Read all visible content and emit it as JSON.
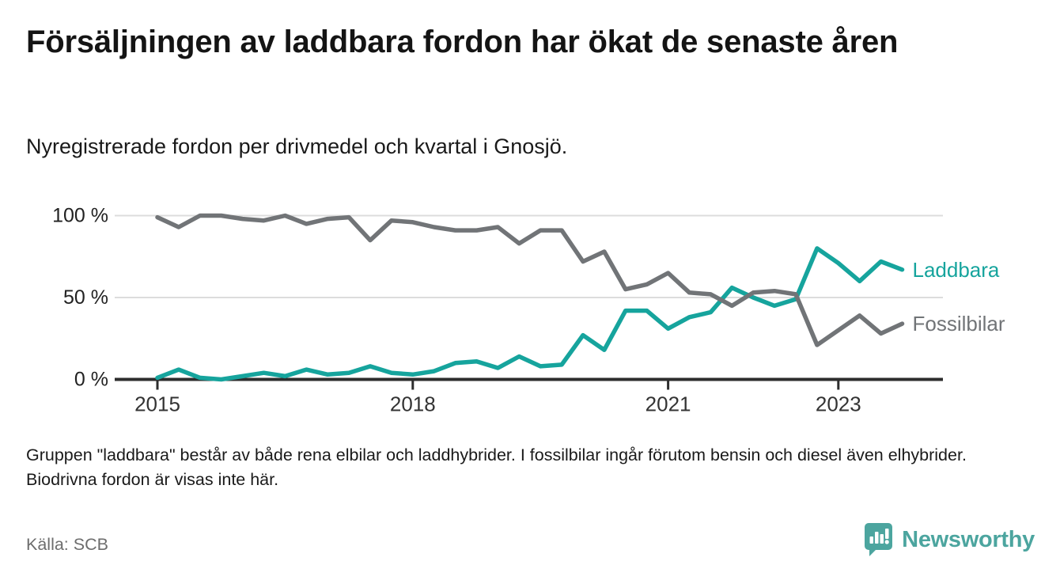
{
  "header": {
    "title": "Försäljningen av laddbara fordon har ökat de senaste åren",
    "subtitle": "Nyregistrerade fordon per drivmedel och kvartal i Gnosjö."
  },
  "chart_data": {
    "type": "line",
    "x_unit": "quarter",
    "categories": [
      "2015 Q1",
      "2015 Q2",
      "2015 Q3",
      "2015 Q4",
      "2016 Q1",
      "2016 Q2",
      "2016 Q3",
      "2016 Q4",
      "2017 Q1",
      "2017 Q2",
      "2017 Q3",
      "2017 Q4",
      "2018 Q1",
      "2018 Q2",
      "2018 Q3",
      "2018 Q4",
      "2019 Q1",
      "2019 Q2",
      "2019 Q3",
      "2019 Q4",
      "2020 Q1",
      "2020 Q2",
      "2020 Q3",
      "2020 Q4",
      "2021 Q1",
      "2021 Q2",
      "2021 Q3",
      "2021 Q4",
      "2022 Q1",
      "2022 Q2",
      "2022 Q3",
      "2022 Q4",
      "2023 Q1",
      "2023 Q2",
      "2023 Q3",
      "2023 Q4"
    ],
    "series": [
      {
        "name": "Laddbara",
        "color": "#16a49d",
        "values": [
          1,
          6,
          1,
          0,
          2,
          4,
          2,
          6,
          3,
          4,
          8,
          4,
          3,
          5,
          10,
          11,
          7,
          14,
          8,
          9,
          27,
          18,
          42,
          42,
          31,
          38,
          41,
          56,
          50,
          45,
          49,
          80,
          71,
          60,
          72,
          67
        ]
      },
      {
        "name": "Fossilbilar",
        "color": "#717477",
        "values": [
          99,
          93,
          100,
          100,
          98,
          97,
          100,
          95,
          98,
          99,
          85,
          97,
          96,
          93,
          91,
          91,
          93,
          83,
          91,
          91,
          72,
          78,
          55,
          58,
          65,
          53,
          52,
          45,
          53,
          54,
          52,
          21,
          30,
          39,
          28,
          34
        ]
      }
    ],
    "ylim": [
      0,
      100
    ],
    "y_ticks": [
      {
        "value": 100,
        "label": "100 %"
      },
      {
        "value": 50,
        "label": "50 %"
      },
      {
        "value": 0,
        "label": "0 %"
      }
    ],
    "x_ticks": [
      {
        "label": "2015",
        "quarter_index": 0
      },
      {
        "label": "2018",
        "quarter_index": 12
      },
      {
        "label": "2021",
        "quarter_index": 24
      },
      {
        "label": "2023",
        "quarter_index": 32
      }
    ],
    "grid": "horizontal",
    "legend_position": "right-of-line-end",
    "colors": {
      "grid_line": "#dcdcdc",
      "axis_line": "#2d2d2d",
      "tick_text": "#333333",
      "ytick_text": "#222222"
    }
  },
  "footer": {
    "note": "Gruppen \"laddbara\" består av både rena elbilar och laddhybrider. I fossilbilar ingår förutom bensin och diesel även elhybrider. Biodrivna fordon är visas inte här.",
    "source": "Källa: SCB",
    "logo_text": "Newsworthy"
  }
}
